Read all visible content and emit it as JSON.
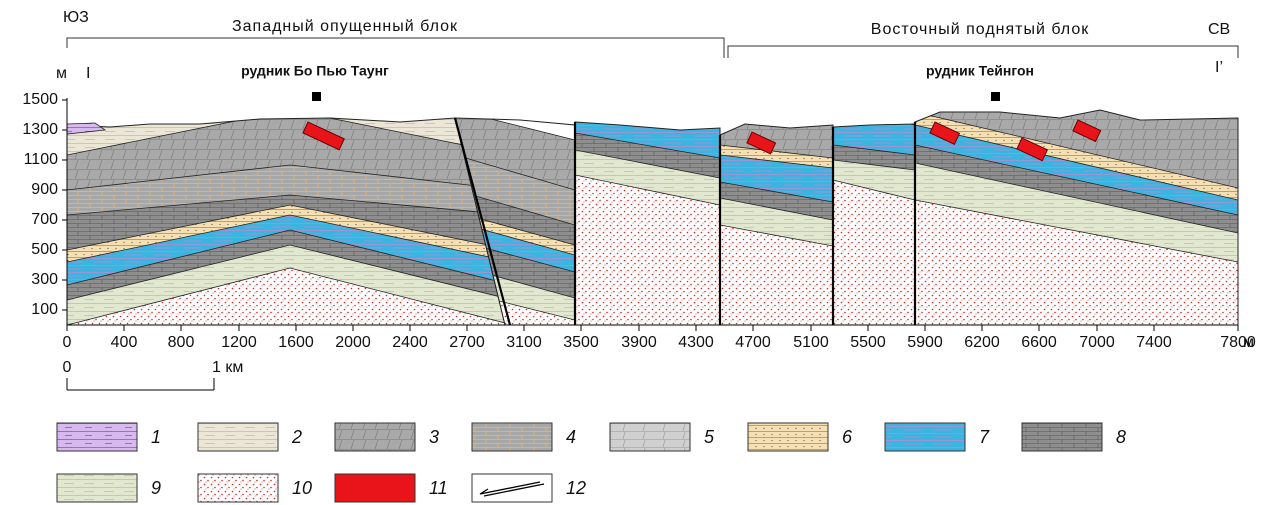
{
  "corners": {
    "left": "ЮЗ",
    "right": "СВ"
  },
  "blocks": [
    "Западный опущенный блок",
    "Восточный поднятый блок"
  ],
  "section_ends": {
    "left": "I",
    "right": "I’"
  },
  "mines": [
    "рудник Бо Пью Таунг",
    "рудник Тейнгон"
  ],
  "y_axis": {
    "unit": "м",
    "ticks": [
      "1500",
      "1300",
      "1100",
      "900",
      "700",
      "500",
      "300",
      "100"
    ]
  },
  "x_axis": {
    "unit": "м",
    "ticks": [
      "0",
      "400",
      "800",
      "1200",
      "1600",
      "2000",
      "2400",
      "2700",
      "3100",
      "3500",
      "3900",
      "4300",
      "4700",
      "5100",
      "5500",
      "5900",
      "6200",
      "6600",
      "7000",
      "7400",
      "7800"
    ]
  },
  "scale_bar": {
    "start": "0",
    "end": "1 км"
  },
  "legend": [
    "1",
    "2",
    "3",
    "4",
    "5",
    "6",
    "7",
    "8",
    "9",
    "10",
    "11",
    "12"
  ]
}
